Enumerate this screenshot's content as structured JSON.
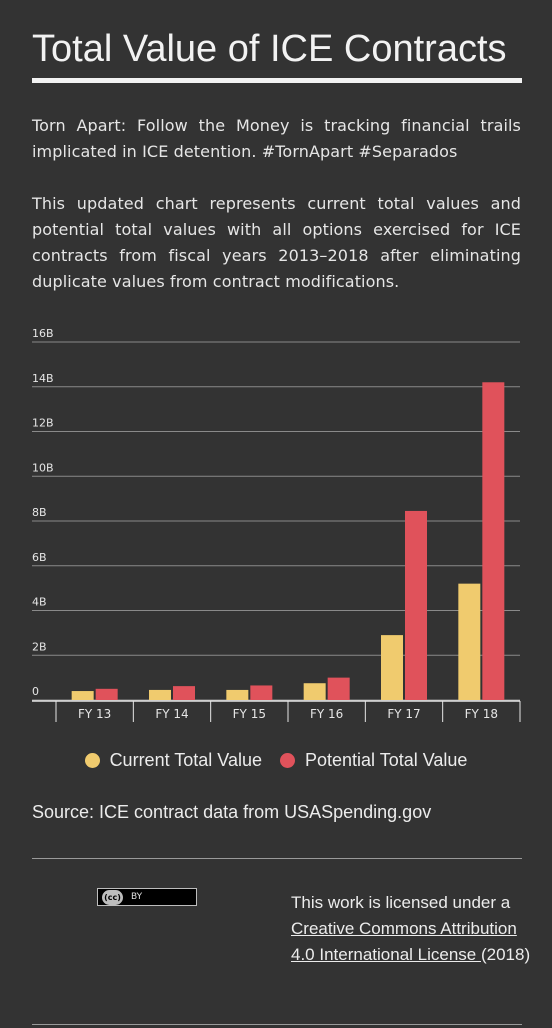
{
  "title": "Total Value of ICE Contracts",
  "intro": "Torn Apart: Follow the Money is tracking financial trails implicated in ICE detention. #TornApart #Separados",
  "description": "This updated chart represents current total values and potential total values with all options exercised for ICE contracts  from fiscal years 2013–2018 after eliminating duplicate values from contract modifications.",
  "chart_data": {
    "type": "bar",
    "categories": [
      "FY 13",
      "FY 14",
      "FY 15",
      "FY 16",
      "FY 17",
      "FY 18"
    ],
    "series": [
      {
        "name": "Current Total Value",
        "color": "#f0cb6e",
        "values": [
          0.4,
          0.45,
          0.45,
          0.75,
          2.9,
          5.2
        ]
      },
      {
        "name": "Potential Total Value",
        "color": "#e0525b",
        "values": [
          0.5,
          0.62,
          0.65,
          1.0,
          8.45,
          14.2
        ]
      }
    ],
    "yticks": [
      0,
      2,
      4,
      6,
      8,
      10,
      12,
      14,
      16
    ],
    "ytick_labels": [
      "0",
      "2B",
      "4B",
      "6B",
      "8B",
      "10B",
      "12B",
      "14B",
      "16B"
    ],
    "ylim": [
      0,
      16
    ],
    "grid": true,
    "legend": "bottom"
  },
  "legend": {
    "current_label": "Current Total Value",
    "potential_label": "Potential Total Value"
  },
  "source": "Source: ICE contract data from USASpending.gov",
  "license": {
    "badge_cc": "(cc)",
    "badge_by": "BY",
    "prefix": "This work is licensed under a ",
    "link_text": "Creative Commons Attribution 4.0 International License ",
    "suffix": "(2018)"
  }
}
